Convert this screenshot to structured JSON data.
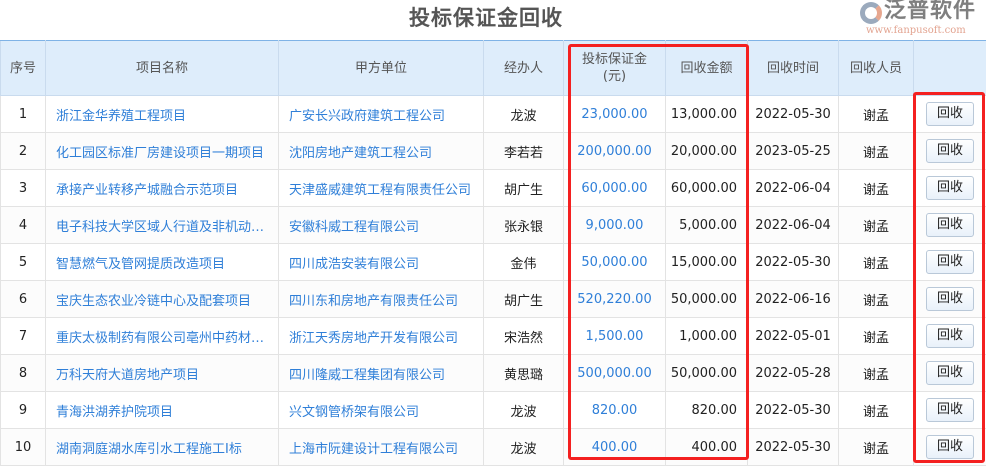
{
  "title": "投标保证金回收",
  "columns": [
    "序号",
    "项目名称",
    "甲方单位",
    "经办人",
    "投标保证金\n(元)",
    "回收金额",
    "回收时间",
    "回收人员",
    ""
  ],
  "deposit_header_line1": "投标保证金",
  "deposit_header_line2": "(元)",
  "action_label": "回收",
  "rows": [
    {
      "no": "1",
      "project": "浙江金华养殖工程项目",
      "client": "广安长兴政府建筑工程公司",
      "handler": "龙波",
      "deposit": "23,000.00",
      "recovered": "13,000.00",
      "date": "2022-05-30",
      "collector": "谢孟"
    },
    {
      "no": "2",
      "project": "化工园区标准厂房建设项目一期项目",
      "client": "沈阳房地产建筑工程公司",
      "handler": "李若若",
      "deposit": "200,000.00",
      "recovered": "20,000.00",
      "date": "2023-05-25",
      "collector": "谢孟"
    },
    {
      "no": "3",
      "project": "承接产业转移产城融合示范项目",
      "client": "天津盛威建筑工程有限责任公司",
      "handler": "胡广生",
      "deposit": "60,000.00",
      "recovered": "60,000.00",
      "date": "2022-06-04",
      "collector": "谢孟"
    },
    {
      "no": "4",
      "project": "电子科技大学区域人行道及非机动…",
      "client": "安徽科威工程有限公司",
      "handler": "张永银",
      "deposit": "9,000.00",
      "recovered": "5,000.00",
      "date": "2022-06-04",
      "collector": "谢孟"
    },
    {
      "no": "5",
      "project": "智慧燃气及管网提质改造项目",
      "client": "四川成浩安装有限公司",
      "handler": "金伟",
      "deposit": "50,000.00",
      "recovered": "15,000.00",
      "date": "2022-05-30",
      "collector": "谢孟"
    },
    {
      "no": "6",
      "project": "宝庆生态农业冷链中心及配套项目",
      "client": "四川东和房地产有限责任公司",
      "handler": "胡广生",
      "deposit": "520,220.00",
      "recovered": "50,000.00",
      "date": "2022-06-16",
      "collector": "谢孟"
    },
    {
      "no": "7",
      "project": "重庆太极制药有限公司亳州中药材…",
      "client": "浙江天秀房地产开发有限公司",
      "handler": "宋浩然",
      "deposit": "1,500.00",
      "recovered": "1,000.00",
      "date": "2022-05-01",
      "collector": "谢孟"
    },
    {
      "no": "8",
      "project": "万科天府大道房地产项目",
      "client": "四川隆威工程集团有限公司",
      "handler": "黄思璐",
      "deposit": "500,000.00",
      "recovered": "50,000.00",
      "date": "2022-05-28",
      "collector": "谢孟"
    },
    {
      "no": "9",
      "project": "青海洪湖养护院项目",
      "client": "兴文钢管桥架有限公司",
      "handler": "龙波",
      "deposit": "820.00",
      "recovered": "820.00",
      "date": "2022-05-30",
      "collector": "谢孟"
    },
    {
      "no": "10",
      "project": "湖南洞庭湖水库引水工程施工I标",
      "client": "上海市阮建设计工程有限公司",
      "handler": "龙波",
      "deposit": "400.00",
      "recovered": "400.00",
      "date": "2022-05-30",
      "collector": "谢孟"
    }
  ],
  "watermark": {
    "text": "泛普软件",
    "url": "www.fanpusoft.com"
  },
  "colors": {
    "highlight": "#f42020",
    "link": "#2f7fd8",
    "header_bg": "#deedfb"
  }
}
